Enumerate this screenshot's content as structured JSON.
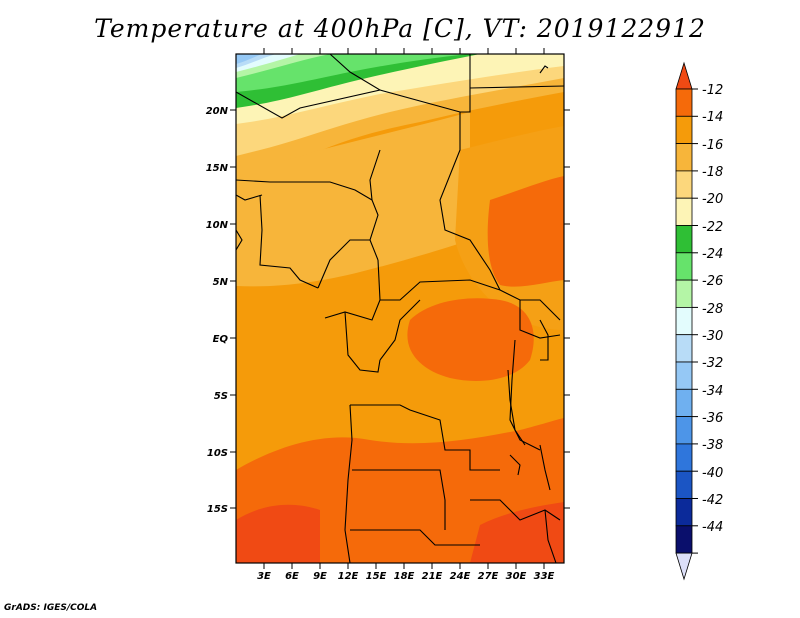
{
  "title": "Temperature at 400hPa [C], VT: 2019122912",
  "credit": "GrADS: IGES/COLA",
  "map": {
    "latitude_labels": [
      "20N",
      "15N",
      "10N",
      "5N",
      "EQ",
      "5S",
      "10S",
      "15S"
    ],
    "longitude_labels": [
      "3E",
      "6E",
      "9E",
      "12E",
      "15E",
      "18E",
      "21E",
      "24E",
      "27E",
      "30E",
      "33E"
    ]
  },
  "colorbar": {
    "labels": [
      "-12",
      "-14",
      "-16",
      "-18",
      "-20",
      "-22",
      "-24",
      "-26",
      "-28",
      "-30",
      "-32",
      "-34",
      "-36",
      "-38",
      "-40",
      "-42",
      "-44"
    ],
    "colors": [
      "#f04a14",
      "#f56a0a",
      "#f59b0a",
      "#f7b53a",
      "#fcd77c",
      "#fdf4b6",
      "#2fbf35",
      "#66e36b",
      "#b4f5a6",
      "#e3fcfd",
      "#b8dcf7",
      "#95c8f5",
      "#6fb0f0",
      "#4d95e8",
      "#2f76dc",
      "#1b55c4",
      "#0b2a9a",
      "#0a0f6c",
      "#dcdff8"
    ]
  }
}
